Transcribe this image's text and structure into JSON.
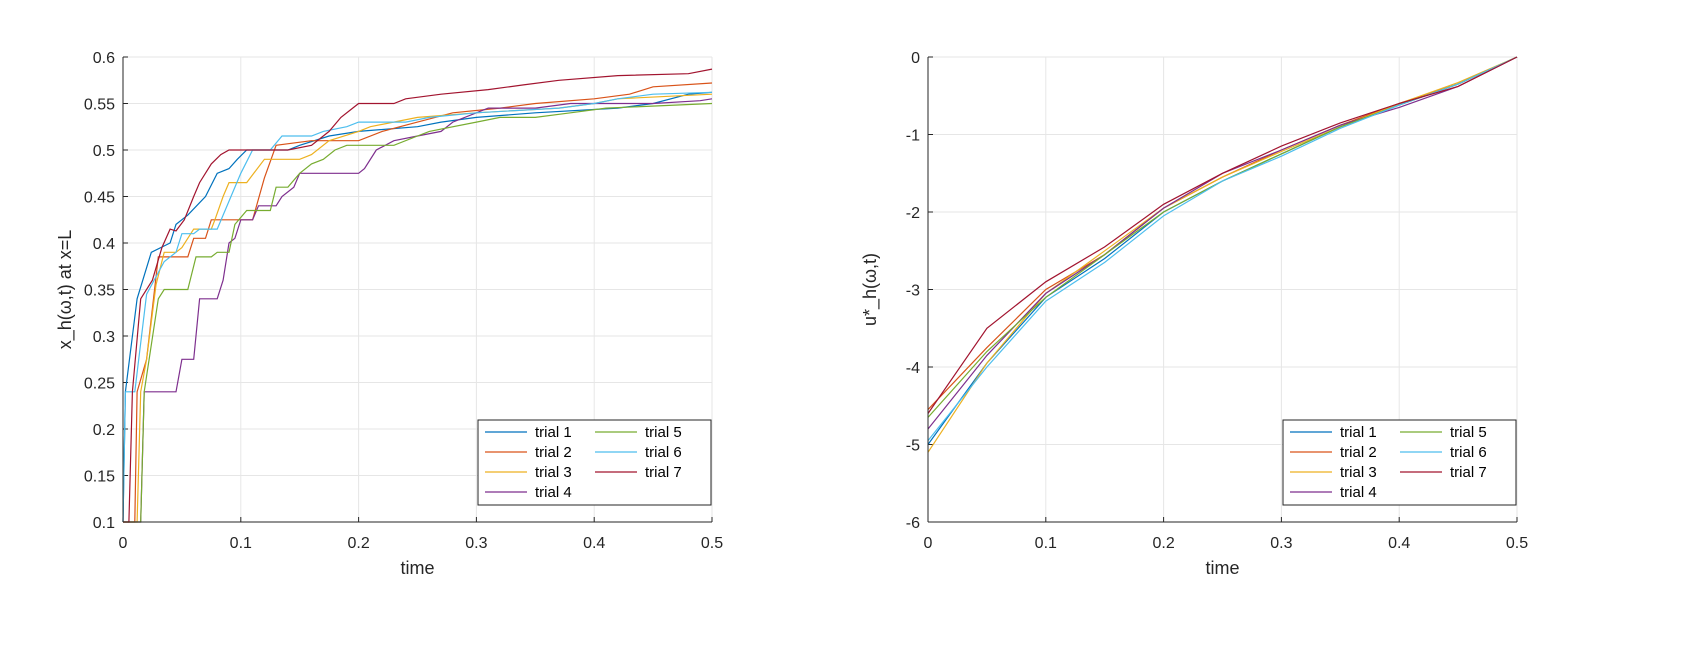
{
  "colors": [
    "#0072BD",
    "#D95319",
    "#EDB120",
    "#7E2F8E",
    "#77AC30",
    "#4DBEEE",
    "#A2142F"
  ],
  "chart_data": [
    {
      "type": "line",
      "xlabel": "time",
      "ylabel": "x_h(ω,t) at x=L",
      "xlim": [
        0,
        0.5
      ],
      "ylim": [
        0.1,
        0.6
      ],
      "xticks": [
        "0",
        "0.1",
        "0.2",
        "0.3",
        "0.4",
        "0.5"
      ],
      "yticks": [
        "0.1",
        "0.15",
        "0.2",
        "0.25",
        "0.3",
        "0.35",
        "0.4",
        "0.45",
        "0.5",
        "0.55",
        "0.6"
      ],
      "grid": true,
      "legend_placement": "bottom-right",
      "series": [
        {
          "name": "trial 1",
          "x": [
            0,
            0.002,
            0.005,
            0.012,
            0.024,
            0.04,
            0.045,
            0.055,
            0.07,
            0.08,
            0.09,
            0.097,
            0.105,
            0.14,
            0.15,
            0.175,
            0.2,
            0.25,
            0.27,
            0.3,
            0.35,
            0.42,
            0.45,
            0.48,
            0.5
          ],
          "y": [
            0.1,
            0.24,
            0.27,
            0.34,
            0.39,
            0.4,
            0.42,
            0.43,
            0.45,
            0.475,
            0.48,
            0.49,
            0.5,
            0.5,
            0.505,
            0.515,
            0.52,
            0.525,
            0.53,
            0.535,
            0.54,
            0.545,
            0.55,
            0.56,
            0.562
          ]
        },
        {
          "name": "trial 2",
          "x": [
            0,
            0.01,
            0.012,
            0.02,
            0.03,
            0.055,
            0.06,
            0.07,
            0.075,
            0.11,
            0.12,
            0.13,
            0.16,
            0.2,
            0.22,
            0.25,
            0.28,
            0.32,
            0.35,
            0.4,
            0.43,
            0.45,
            0.5
          ],
          "y": [
            0.1,
            0.1,
            0.24,
            0.275,
            0.385,
            0.385,
            0.405,
            0.405,
            0.425,
            0.425,
            0.47,
            0.505,
            0.51,
            0.51,
            0.52,
            0.53,
            0.54,
            0.545,
            0.55,
            0.555,
            0.56,
            0.568,
            0.572
          ]
        },
        {
          "name": "trial 3",
          "x": [
            0,
            0.012,
            0.015,
            0.02,
            0.028,
            0.035,
            0.045,
            0.05,
            0.06,
            0.075,
            0.078,
            0.085,
            0.09,
            0.105,
            0.12,
            0.15,
            0.16,
            0.175,
            0.2,
            0.21,
            0.25,
            0.3,
            0.37,
            0.4,
            0.42,
            0.5
          ],
          "y": [
            0.1,
            0.1,
            0.24,
            0.275,
            0.355,
            0.39,
            0.39,
            0.395,
            0.415,
            0.415,
            0.425,
            0.45,
            0.465,
            0.465,
            0.49,
            0.49,
            0.495,
            0.51,
            0.52,
            0.525,
            0.535,
            0.54,
            0.545,
            0.55,
            0.555,
            0.56
          ]
        },
        {
          "name": "trial 4",
          "x": [
            0,
            0.015,
            0.018,
            0.045,
            0.05,
            0.06,
            0.065,
            0.08,
            0.085,
            0.09,
            0.095,
            0.1,
            0.11,
            0.115,
            0.13,
            0.135,
            0.145,
            0.15,
            0.2,
            0.205,
            0.215,
            0.23,
            0.25,
            0.27,
            0.28,
            0.3,
            0.31,
            0.35,
            0.38,
            0.45,
            0.49,
            0.5
          ],
          "y": [
            0.1,
            0.1,
            0.24,
            0.24,
            0.275,
            0.275,
            0.34,
            0.34,
            0.36,
            0.4,
            0.405,
            0.425,
            0.425,
            0.44,
            0.44,
            0.45,
            0.46,
            0.475,
            0.475,
            0.48,
            0.5,
            0.51,
            0.515,
            0.52,
            0.53,
            0.54,
            0.545,
            0.545,
            0.55,
            0.55,
            0.553,
            0.555
          ]
        },
        {
          "name": "trial 5",
          "x": [
            0,
            0.015,
            0.018,
            0.03,
            0.035,
            0.055,
            0.062,
            0.075,
            0.08,
            0.09,
            0.095,
            0.105,
            0.125,
            0.13,
            0.14,
            0.15,
            0.16,
            0.17,
            0.18,
            0.19,
            0.23,
            0.25,
            0.26,
            0.3,
            0.32,
            0.35,
            0.38,
            0.41,
            0.5
          ],
          "y": [
            0.1,
            0.1,
            0.24,
            0.34,
            0.35,
            0.35,
            0.385,
            0.385,
            0.39,
            0.39,
            0.42,
            0.435,
            0.435,
            0.46,
            0.46,
            0.475,
            0.485,
            0.49,
            0.5,
            0.505,
            0.505,
            0.515,
            0.52,
            0.53,
            0.535,
            0.535,
            0.54,
            0.545,
            0.55
          ]
        },
        {
          "name": "trial 6",
          "x": [
            0,
            0.002,
            0.01,
            0.02,
            0.035,
            0.045,
            0.05,
            0.06,
            0.065,
            0.08,
            0.1,
            0.11,
            0.125,
            0.135,
            0.16,
            0.17,
            0.19,
            0.2,
            0.24,
            0.26,
            0.3,
            0.37,
            0.4,
            0.42,
            0.45,
            0.5
          ],
          "y": [
            0.1,
            0.24,
            0.24,
            0.345,
            0.38,
            0.39,
            0.41,
            0.41,
            0.415,
            0.415,
            0.475,
            0.5,
            0.5,
            0.515,
            0.515,
            0.52,
            0.525,
            0.53,
            0.53,
            0.535,
            0.54,
            0.545,
            0.55,
            0.555,
            0.56,
            0.562
          ]
        },
        {
          "name": "trial 7",
          "x": [
            0,
            0.005,
            0.008,
            0.015,
            0.025,
            0.033,
            0.04,
            0.045,
            0.052,
            0.06,
            0.065,
            0.075,
            0.083,
            0.09,
            0.14,
            0.16,
            0.175,
            0.185,
            0.195,
            0.2,
            0.23,
            0.24,
            0.27,
            0.31,
            0.34,
            0.37,
            0.42,
            0.48,
            0.5
          ],
          "y": [
            0.1,
            0.1,
            0.24,
            0.34,
            0.36,
            0.395,
            0.415,
            0.413,
            0.425,
            0.45,
            0.465,
            0.485,
            0.495,
            0.5,
            0.5,
            0.505,
            0.52,
            0.535,
            0.545,
            0.55,
            0.55,
            0.555,
            0.56,
            0.565,
            0.57,
            0.575,
            0.58,
            0.582,
            0.587
          ]
        }
      ]
    },
    {
      "type": "line",
      "xlabel": "time",
      "ylabel": "u*_h(ω,t)",
      "xlim": [
        0,
        0.5
      ],
      "ylim": [
        -6,
        0
      ],
      "xticks": [
        "0",
        "0.1",
        "0.2",
        "0.3",
        "0.4",
        "0.5"
      ],
      "yticks": [
        "-6",
        "-5",
        "-4",
        "-3",
        "-2",
        "-1",
        "0"
      ],
      "grid": true,
      "legend_placement": "bottom-right",
      "series": [
        {
          "name": "trial 1",
          "x": [
            0,
            0.05,
            0.1,
            0.15,
            0.2,
            0.25,
            0.3,
            0.35,
            0.4,
            0.45,
            0.5
          ],
          "y": [
            -5.0,
            -3.95,
            -3.1,
            -2.6,
            -2.0,
            -1.6,
            -1.25,
            -0.9,
            -0.62,
            -0.35,
            0
          ]
        },
        {
          "name": "trial 2",
          "x": [
            0,
            0.05,
            0.1,
            0.15,
            0.2,
            0.25,
            0.3,
            0.35,
            0.4,
            0.45,
            0.5
          ],
          "y": [
            -4.55,
            -3.75,
            -3.0,
            -2.55,
            -1.95,
            -1.55,
            -1.2,
            -0.88,
            -0.6,
            -0.35,
            0
          ]
        },
        {
          "name": "trial 3",
          "x": [
            0,
            0.05,
            0.1,
            0.15,
            0.2,
            0.25,
            0.3,
            0.35,
            0.4,
            0.45,
            0.5
          ],
          "y": [
            -5.1,
            -3.95,
            -3.05,
            -2.5,
            -1.95,
            -1.55,
            -1.22,
            -0.9,
            -0.6,
            -0.33,
            0
          ]
        },
        {
          "name": "trial 4",
          "x": [
            0,
            0.05,
            0.1,
            0.15,
            0.2,
            0.25,
            0.3,
            0.35,
            0.4,
            0.45,
            0.5
          ],
          "y": [
            -4.8,
            -3.85,
            -3.05,
            -2.55,
            -1.95,
            -1.5,
            -1.2,
            -0.88,
            -0.65,
            -0.38,
            0
          ]
        },
        {
          "name": "trial 5",
          "x": [
            0,
            0.05,
            0.1,
            0.15,
            0.2,
            0.25,
            0.3,
            0.35,
            0.4,
            0.45,
            0.5
          ],
          "y": [
            -4.65,
            -3.8,
            -3.1,
            -2.55,
            -2.0,
            -1.6,
            -1.25,
            -0.9,
            -0.62,
            -0.35,
            0
          ]
        },
        {
          "name": "trial 6",
          "x": [
            0,
            0.05,
            0.1,
            0.15,
            0.2,
            0.25,
            0.3,
            0.35,
            0.4,
            0.45,
            0.5
          ],
          "y": [
            -4.95,
            -4.0,
            -3.15,
            -2.65,
            -2.05,
            -1.6,
            -1.28,
            -0.92,
            -0.62,
            -0.35,
            0
          ]
        },
        {
          "name": "trial 7",
          "x": [
            0,
            0.05,
            0.1,
            0.15,
            0.2,
            0.25,
            0.3,
            0.35,
            0.4,
            0.45,
            0.5
          ],
          "y": [
            -4.6,
            -3.5,
            -2.9,
            -2.45,
            -1.9,
            -1.5,
            -1.15,
            -0.85,
            -0.6,
            -0.38,
            0
          ]
        }
      ]
    }
  ]
}
